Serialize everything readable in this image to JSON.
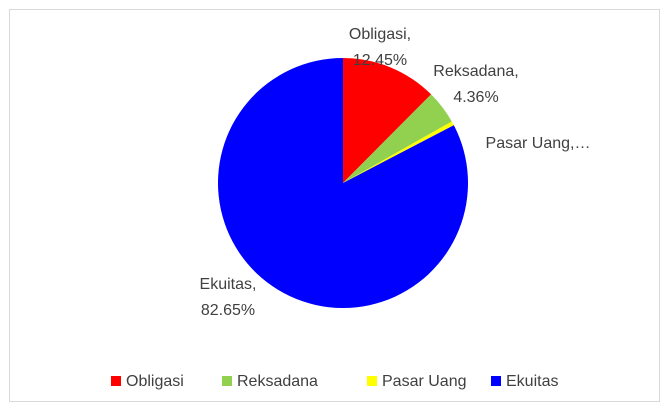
{
  "chart_data": {
    "type": "pie",
    "categories": [
      "Obligasi",
      "Reksadana",
      "Pasar Uang",
      "Ekuitas"
    ],
    "values": [
      12.45,
      4.36,
      0.54,
      82.65
    ],
    "data_labels": [
      [
        "Obligasi,",
        "12.45%"
      ],
      [
        "Reksadana,",
        "4.36%"
      ],
      [
        "Pasar Uang,…"
      ],
      [
        "Ekuitas,",
        "82.65%"
      ]
    ],
    "colors": [
      "#ff0000",
      "#92d050",
      "#ffff00",
      "#0000ff"
    ],
    "legend": "bottom"
  }
}
